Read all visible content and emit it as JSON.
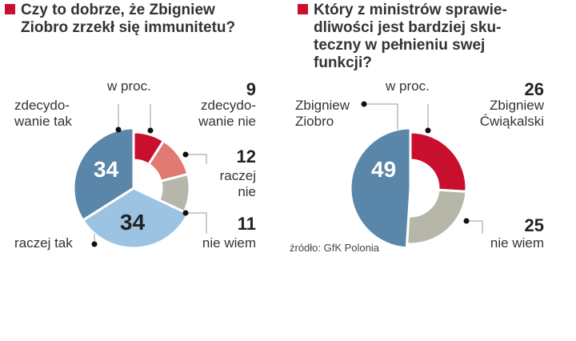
{
  "chart_data": [
    {
      "type": "pie",
      "title": "Czy to dobrze, że Zbigniew Ziobro zrzekł się immunitetu?",
      "unit": "w proc.",
      "categories": [
        "zdecydowanie nie",
        "raczej nie",
        "nie wiem",
        "raczej tak",
        "zdecydowanie tak"
      ],
      "values": [
        9,
        12,
        11,
        34,
        34
      ],
      "colors": [
        "#c8102e",
        "#e07a72",
        "#b6b6a9",
        "#9cc4e2",
        "#5a86aa"
      ]
    },
    {
      "type": "pie",
      "title": "Który z ministrów sprawiedliwości jest bardziej skuteczny w pełnieniu swej funkcji?",
      "unit": "w proc.",
      "categories": [
        "Zbigniew Ćwiąkalski",
        "nie wiem",
        "Zbigniew Ziobro"
      ],
      "values": [
        26,
        25,
        49
      ],
      "colors": [
        "#c8102e",
        "#b6b6a9",
        "#5a86aa"
      ],
      "source": "źródło: GfK Polonia"
    }
  ],
  "left": {
    "t1": "Czy to dobrze, że Zbigniew",
    "t2": "Ziobro zrzekł się immunitetu?",
    "unit": "w proc.",
    "zn1": "zdecydo-",
    "zn2": "wanie nie",
    "zt1": "zdecydo-",
    "zt2": "wanie tak",
    "rn1": "raczej",
    "rn2": "nie",
    "nw": "nie wiem",
    "rt": "raczej tak",
    "v_zn": "9",
    "v_rn": "12",
    "v_nw": "11",
    "v_rt": "34",
    "v_zt": "34"
  },
  "right": {
    "t1": "Który z ministrów sprawie-",
    "t2": "dliwości jest bardziej sku-",
    "t3": "teczny w pełnieniu swej",
    "t4": "funkcji?",
    "unit": "w proc.",
    "c1": "Zbigniew",
    "c2": "Ćwiąkalski",
    "z1": "Zbigniew",
    "z2": "Ziobro",
    "nw": "nie wiem",
    "v_c": "26",
    "v_nw": "25",
    "v_z": "49",
    "src": "źródło: GfK Polonia"
  }
}
